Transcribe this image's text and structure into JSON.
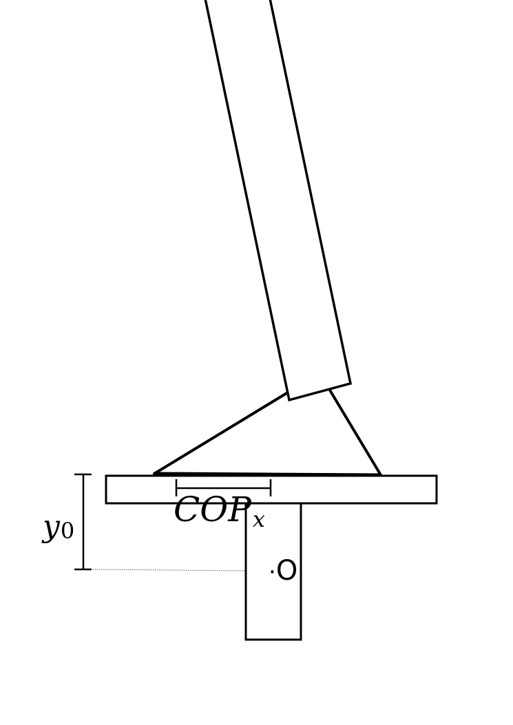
{
  "diagram": {
    "labels": {
      "cop": {
        "main": "COP",
        "subscript": "x"
      },
      "height": {
        "main": "y",
        "subscript": "0"
      },
      "origin": {
        "marker": "·",
        "letter": "O"
      }
    },
    "colors": {
      "stroke": "#000000",
      "fill": "#ffffff",
      "guide": "#555555"
    }
  }
}
